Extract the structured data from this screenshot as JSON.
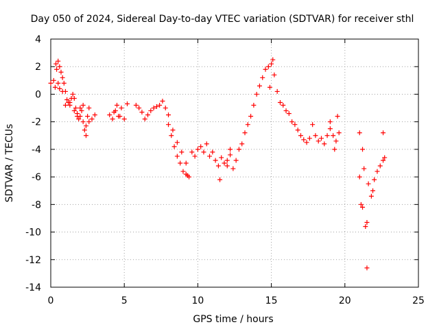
{
  "chart_data": {
    "type": "scatter",
    "title": "Day 050 of 2024, Sidereal Day-to-day VTEC variation (SDTVAR) for receiver sthl",
    "xlabel": "GPS time / hours",
    "ylabel": "SDTVAR / TECUs",
    "xlim": [
      0,
      25
    ],
    "ylim": [
      -14,
      4
    ],
    "xticks": [
      0,
      5,
      10,
      15,
      20,
      25
    ],
    "yticks": [
      -14,
      -12,
      -10,
      -8,
      -6,
      -4,
      -2,
      0,
      2,
      4
    ],
    "grid": true,
    "marker": "+",
    "color": "#ff0000",
    "series": [
      {
        "name": "SDTVAR",
        "x": [
          0.0,
          0.2,
          0.35,
          0.5,
          0.6,
          0.7,
          0.8,
          0.9,
          1.0,
          1.1,
          1.2,
          1.3,
          1.4,
          1.5,
          1.6,
          1.7,
          1.8,
          1.9,
          2.0,
          2.1,
          2.2,
          2.3,
          2.4,
          2.5,
          2.6,
          2.8,
          3.0,
          0.3,
          0.4,
          0.5,
          0.6,
          0.8,
          1.0,
          1.3,
          1.6,
          1.8,
          2.0,
          2.2,
          2.4,
          2.6,
          4.0,
          4.2,
          4.4,
          4.6,
          4.8,
          5.0,
          4.3,
          4.5,
          4.7,
          5.2,
          5.8,
          6.0,
          6.2,
          6.4,
          6.6,
          6.8,
          7.0,
          7.2,
          7.4,
          7.6,
          7.8,
          8.0,
          8.2,
          8.4,
          8.6,
          8.8,
          9.0,
          9.2,
          9.4,
          8.0,
          8.3,
          8.6,
          8.9,
          9.2,
          9.3,
          9.6,
          9.8,
          10.0,
          10.2,
          10.4,
          10.6,
          10.8,
          11.0,
          11.2,
          11.4,
          11.6,
          11.8,
          12.0,
          12.2,
          11.5,
          12.0,
          12.2,
          12.4,
          12.6,
          12.8,
          13.0,
          13.2,
          13.4,
          13.6,
          13.8,
          14.0,
          14.2,
          14.4,
          14.6,
          14.8,
          15.0,
          15.1,
          14.9,
          15.2,
          15.4,
          15.6,
          15.8,
          16.0,
          16.2,
          16.4,
          16.6,
          16.8,
          17.0,
          17.2,
          17.4,
          17.6,
          17.8,
          18.0,
          18.2,
          18.4,
          18.6,
          18.8,
          19.0,
          19.2,
          19.4,
          19.6,
          19.0,
          19.3,
          19.5,
          21.0,
          21.2,
          21.3,
          21.0,
          21.1,
          21.2,
          21.4,
          21.5,
          21.6,
          21.8,
          22.0,
          22.2,
          22.4,
          22.6,
          22.7,
          22.6,
          21.9,
          21.5
        ],
        "y": [
          0.8,
          1.0,
          2.2,
          2.4,
          2.0,
          1.6,
          1.2,
          0.8,
          0.2,
          -0.4,
          -0.6,
          -0.8,
          -0.3,
          0.0,
          -0.3,
          -1.0,
          -1.4,
          -1.8,
          -1.6,
          -1.2,
          -2.0,
          -2.6,
          -3.0,
          -1.6,
          -1.0,
          -1.8,
          -1.5,
          0.5,
          1.8,
          0.8,
          0.4,
          0.2,
          -0.8,
          -0.6,
          -1.2,
          -1.6,
          -1.0,
          -0.8,
          -2.3,
          -2.0,
          -1.5,
          -1.8,
          -1.2,
          -1.6,
          -1.0,
          -1.8,
          -1.3,
          -0.8,
          -1.6,
          -0.7,
          -0.8,
          -1.0,
          -1.3,
          -1.8,
          -1.5,
          -1.2,
          -1.0,
          -0.9,
          -0.8,
          -0.5,
          -1.0,
          -2.2,
          -3.0,
          -3.8,
          -4.5,
          -5.0,
          -5.6,
          -5.8,
          -6.0,
          -1.5,
          -2.6,
          -3.5,
          -4.2,
          -5.0,
          -5.9,
          -4.2,
          -4.5,
          -4.0,
          -3.8,
          -4.2,
          -3.6,
          -4.5,
          -4.2,
          -4.8,
          -5.2,
          -4.6,
          -5.0,
          -4.8,
          -4.4,
          -6.2,
          -5.2,
          -4.0,
          -5.4,
          -4.8,
          -4.0,
          -3.6,
          -2.8,
          -2.2,
          -1.6,
          -0.8,
          0.0,
          0.6,
          1.2,
          1.8,
          2.0,
          2.2,
          2.5,
          0.5,
          1.4,
          0.2,
          -0.6,
          -0.8,
          -1.2,
          -1.4,
          -2.0,
          -2.2,
          -2.6,
          -3.0,
          -3.3,
          -3.5,
          -3.2,
          -2.2,
          -3.0,
          -3.4,
          -3.2,
          -3.6,
          -3.0,
          -2.5,
          -3.0,
          -3.4,
          -2.8,
          -2.0,
          -4.0,
          -1.6,
          -2.8,
          -4.0,
          -5.4,
          -6.0,
          -8.0,
          -8.2,
          -9.6,
          -9.3,
          -6.5,
          -7.4,
          -6.2,
          -5.6,
          -5.2,
          -4.8,
          -4.6,
          -2.8,
          -7.0,
          -12.6
        ]
      }
    ]
  }
}
